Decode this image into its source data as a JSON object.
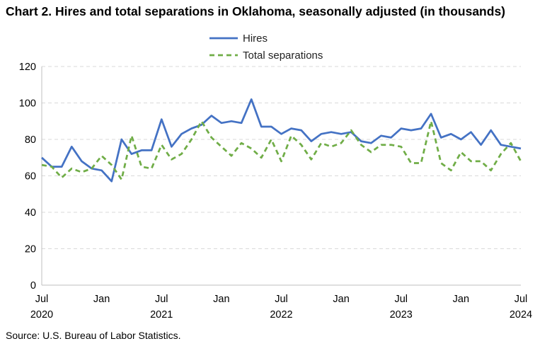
{
  "title": "Chart 2. Hires and total separations in Oklahoma, seasonally adjusted (in thousands)",
  "source": "Source: U.S. Bureau of Labor Statistics.",
  "colors": {
    "hires": "#4472C4",
    "separations": "#70AD47",
    "grid": "#d9d9d9",
    "axis": "#bfbfbf"
  },
  "chart_data": {
    "type": "line",
    "title": "Chart 2. Hires and total separations in Oklahoma, seasonally adjusted (in thousands)",
    "xlabel": "",
    "ylabel": "",
    "ylim": [
      0,
      120
    ],
    "yticks": [
      0,
      20,
      40,
      60,
      80,
      100,
      120
    ],
    "grid": "horizontal dashed",
    "legend": "top-center",
    "x": [
      "2020-07",
      "2020-08",
      "2020-09",
      "2020-10",
      "2020-11",
      "2020-12",
      "2021-01",
      "2021-02",
      "2021-03",
      "2021-04",
      "2021-05",
      "2021-06",
      "2021-07",
      "2021-08",
      "2021-09",
      "2021-10",
      "2021-11",
      "2021-12",
      "2022-01",
      "2022-02",
      "2022-03",
      "2022-04",
      "2022-05",
      "2022-06",
      "2022-07",
      "2022-08",
      "2022-09",
      "2022-10",
      "2022-11",
      "2022-12",
      "2023-01",
      "2023-02",
      "2023-03",
      "2023-04",
      "2023-05",
      "2023-06",
      "2023-07",
      "2023-08",
      "2023-09",
      "2023-10",
      "2023-11",
      "2023-12",
      "2024-01",
      "2024-02",
      "2024-03",
      "2024-04",
      "2024-05",
      "2024-06",
      "2024-07"
    ],
    "xtick_labels": [
      {
        "label": "Jul",
        "year": "2020",
        "index": 0
      },
      {
        "label": "Jan",
        "year": "",
        "index": 6
      },
      {
        "label": "Jul",
        "year": "2021",
        "index": 12
      },
      {
        "label": "Jan",
        "year": "",
        "index": 18
      },
      {
        "label": "Jul",
        "year": "2022",
        "index": 24
      },
      {
        "label": "Jan",
        "year": "",
        "index": 30
      },
      {
        "label": "Jul",
        "year": "2023",
        "index": 36
      },
      {
        "label": "Jan",
        "year": "",
        "index": 42
      },
      {
        "label": "Jul",
        "year": "2024",
        "index": 48
      }
    ],
    "series": [
      {
        "name": "Hires",
        "style": "solid",
        "values": [
          70,
          65,
          65,
          76,
          68,
          64,
          63,
          57,
          80,
          72,
          74,
          74,
          91,
          76,
          83,
          86,
          88,
          93,
          89,
          90,
          89,
          102,
          87,
          87,
          83,
          86,
          85,
          79,
          83,
          84,
          83,
          84,
          79,
          78,
          82,
          81,
          86,
          85,
          86,
          94,
          81,
          83,
          80,
          84,
          77,
          85,
          77,
          76,
          75
        ]
      },
      {
        "name": "Total separations",
        "style": "dashed",
        "values": [
          66,
          65,
          59,
          64,
          62,
          64,
          71,
          66,
          58,
          82,
          65,
          64,
          77,
          69,
          72,
          80,
          90,
          81,
          76,
          71,
          78,
          75,
          70,
          80,
          68,
          82,
          77,
          69,
          78,
          76,
          78,
          85,
          77,
          73,
          77,
          77,
          76,
          67,
          67,
          90,
          67,
          63,
          73,
          68,
          68,
          63,
          72,
          78,
          68
        ]
      }
    ]
  }
}
